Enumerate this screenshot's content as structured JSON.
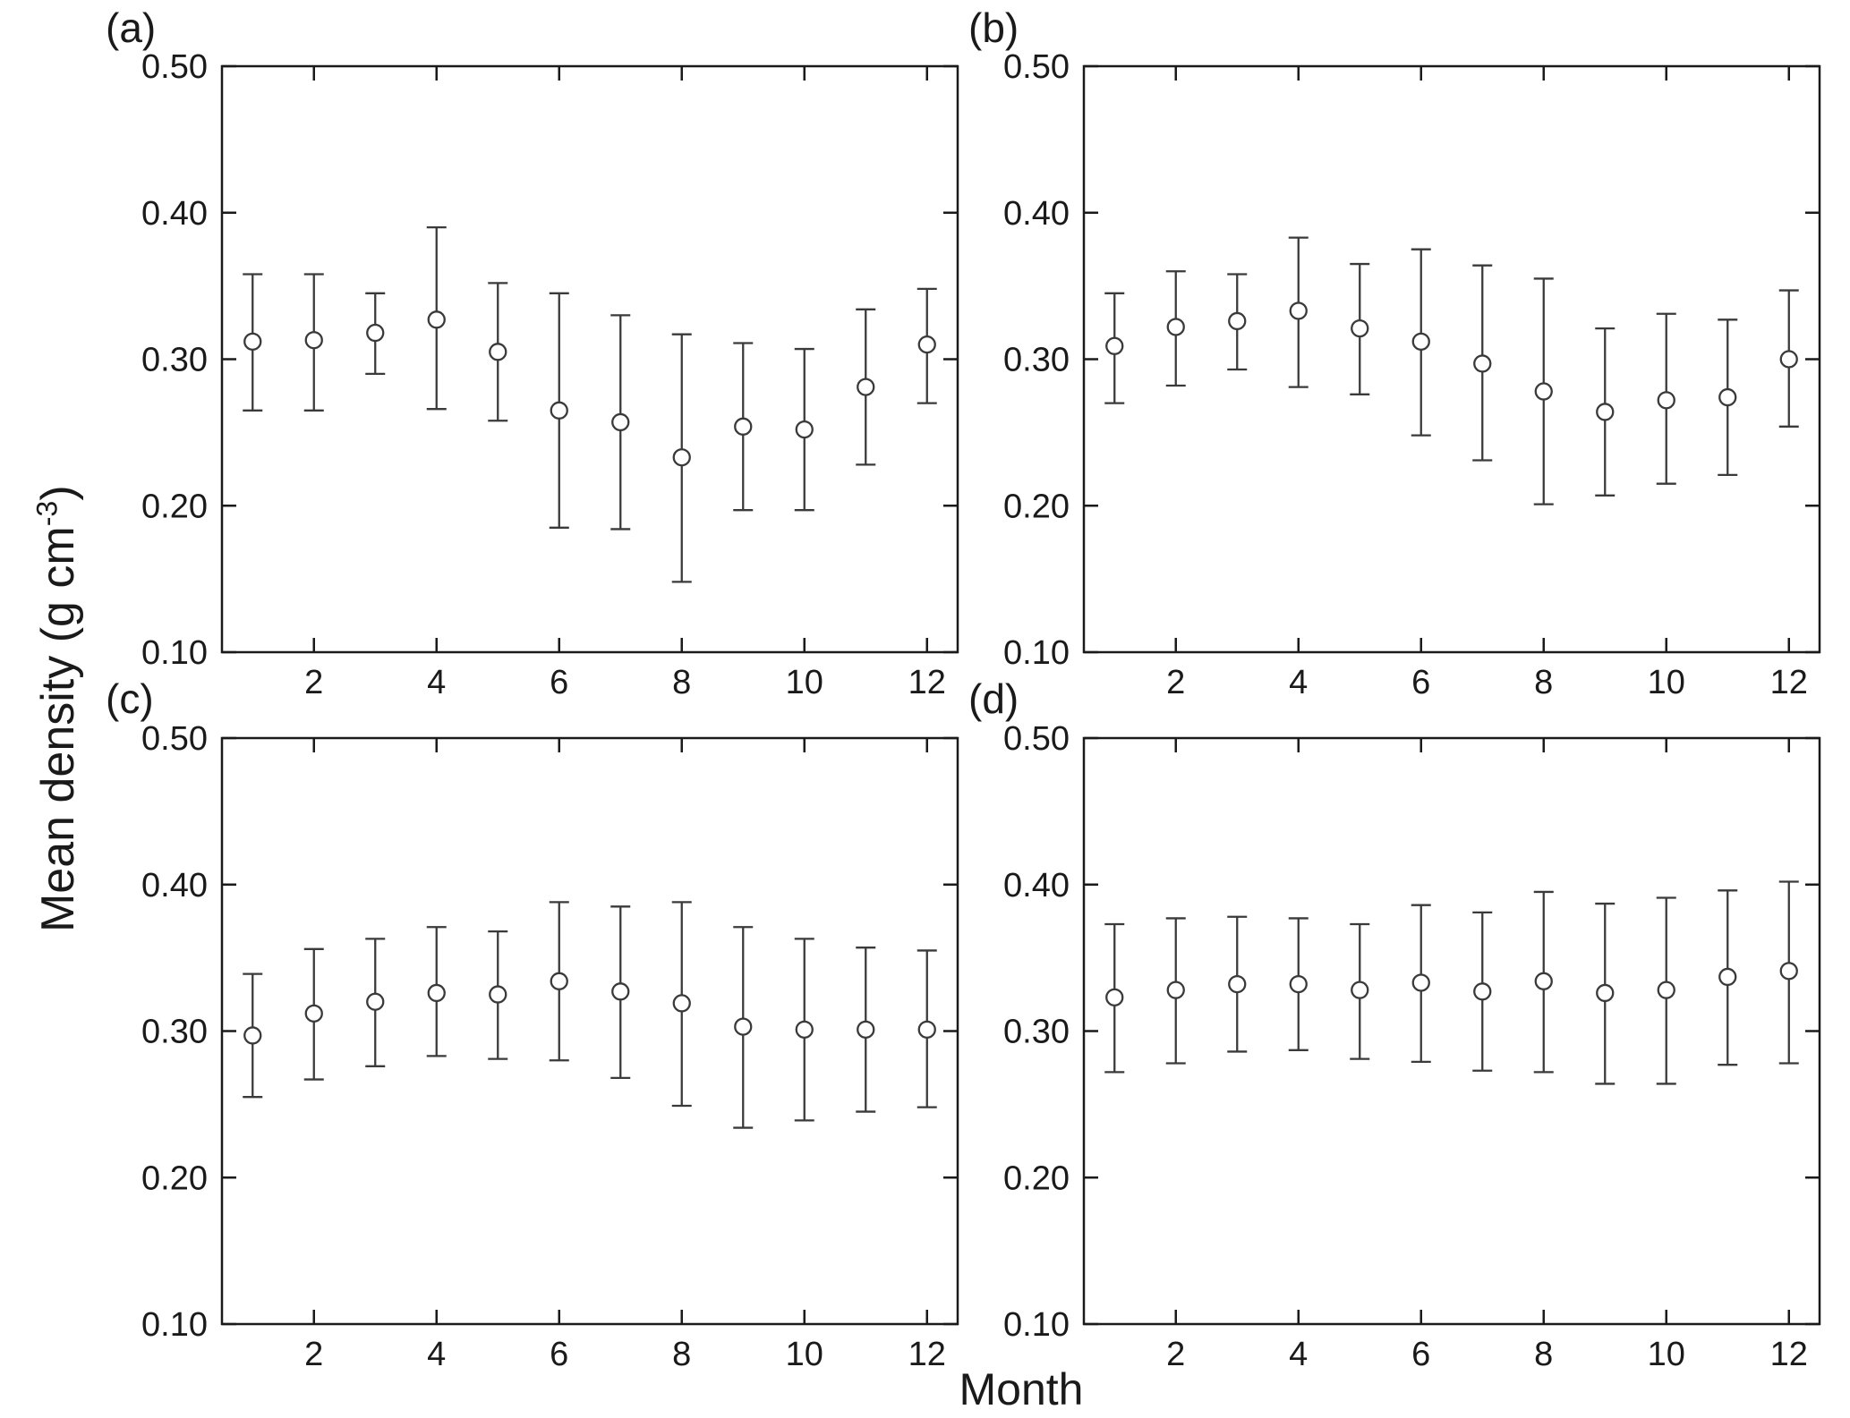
{
  "figure": {
    "ylabel_prefix": "Mean density (g cm",
    "ylabel_superscript": "-3",
    "ylabel_suffix": ")",
    "xlabel": "Month"
  },
  "chart_data": [
    {
      "type": "scatter",
      "subtype": "errorbar",
      "panel_label": "(a)",
      "xlabel": "Month",
      "ylabel": "Mean density (g cm-3)",
      "xlim": [
        0.5,
        12.5
      ],
      "ylim": [
        0.1,
        0.5
      ],
      "xticks": [
        2,
        4,
        6,
        8,
        10,
        12
      ],
      "yticks": [
        0.1,
        0.2,
        0.3,
        0.4,
        0.5
      ],
      "x": [
        1,
        2,
        3,
        4,
        5,
        6,
        7,
        8,
        9,
        10,
        11,
        12
      ],
      "mean": [
        0.312,
        0.313,
        0.318,
        0.327,
        0.305,
        0.265,
        0.257,
        0.233,
        0.254,
        0.252,
        0.281,
        0.31
      ],
      "lower": [
        0.265,
        0.265,
        0.29,
        0.266,
        0.258,
        0.185,
        0.184,
        0.148,
        0.197,
        0.197,
        0.228,
        0.27
      ],
      "upper": [
        0.358,
        0.358,
        0.345,
        0.39,
        0.352,
        0.345,
        0.33,
        0.317,
        0.311,
        0.307,
        0.334,
        0.348
      ]
    },
    {
      "type": "scatter",
      "subtype": "errorbar",
      "panel_label": "(b)",
      "xlabel": "Month",
      "ylabel": "Mean density (g cm-3)",
      "xlim": [
        0.5,
        12.5
      ],
      "ylim": [
        0.1,
        0.5
      ],
      "xticks": [
        2,
        4,
        6,
        8,
        10,
        12
      ],
      "yticks": [
        0.1,
        0.2,
        0.3,
        0.4,
        0.5
      ],
      "x": [
        1,
        2,
        3,
        4,
        5,
        6,
        7,
        8,
        9,
        10,
        11,
        12
      ],
      "mean": [
        0.309,
        0.322,
        0.326,
        0.333,
        0.321,
        0.312,
        0.297,
        0.278,
        0.264,
        0.272,
        0.274,
        0.3
      ],
      "lower": [
        0.27,
        0.282,
        0.293,
        0.281,
        0.276,
        0.248,
        0.231,
        0.201,
        0.207,
        0.215,
        0.221,
        0.254
      ],
      "upper": [
        0.345,
        0.36,
        0.358,
        0.383,
        0.365,
        0.375,
        0.364,
        0.355,
        0.321,
        0.331,
        0.327,
        0.347
      ]
    },
    {
      "type": "scatter",
      "subtype": "errorbar",
      "panel_label": "(c)",
      "xlabel": "Month",
      "ylabel": "Mean density (g cm-3)",
      "xlim": [
        0.5,
        12.5
      ],
      "ylim": [
        0.1,
        0.5
      ],
      "xticks": [
        2,
        4,
        6,
        8,
        10,
        12
      ],
      "yticks": [
        0.1,
        0.2,
        0.3,
        0.4,
        0.5
      ],
      "x": [
        1,
        2,
        3,
        4,
        5,
        6,
        7,
        8,
        9,
        10,
        11,
        12
      ],
      "mean": [
        0.297,
        0.312,
        0.32,
        0.326,
        0.325,
        0.334,
        0.327,
        0.319,
        0.303,
        0.301,
        0.301,
        0.301
      ],
      "lower": [
        0.255,
        0.267,
        0.276,
        0.283,
        0.281,
        0.28,
        0.268,
        0.249,
        0.234,
        0.239,
        0.245,
        0.248
      ],
      "upper": [
        0.339,
        0.356,
        0.363,
        0.371,
        0.368,
        0.388,
        0.385,
        0.388,
        0.371,
        0.363,
        0.357,
        0.355
      ]
    },
    {
      "type": "scatter",
      "subtype": "errorbar",
      "panel_label": "(d)",
      "xlabel": "Month",
      "ylabel": "Mean density (g cm-3)",
      "xlim": [
        0.5,
        12.5
      ],
      "ylim": [
        0.1,
        0.5
      ],
      "xticks": [
        2,
        4,
        6,
        8,
        10,
        12
      ],
      "yticks": [
        0.1,
        0.2,
        0.3,
        0.4,
        0.5
      ],
      "x": [
        1,
        2,
        3,
        4,
        5,
        6,
        7,
        8,
        9,
        10,
        11,
        12
      ],
      "mean": [
        0.323,
        0.328,
        0.332,
        0.332,
        0.328,
        0.333,
        0.327,
        0.334,
        0.326,
        0.328,
        0.337,
        0.341
      ],
      "lower": [
        0.272,
        0.278,
        0.286,
        0.287,
        0.281,
        0.279,
        0.273,
        0.272,
        0.264,
        0.264,
        0.277,
        0.278
      ],
      "upper": [
        0.373,
        0.377,
        0.378,
        0.377,
        0.373,
        0.386,
        0.381,
        0.395,
        0.387,
        0.391,
        0.396,
        0.402
      ]
    }
  ]
}
